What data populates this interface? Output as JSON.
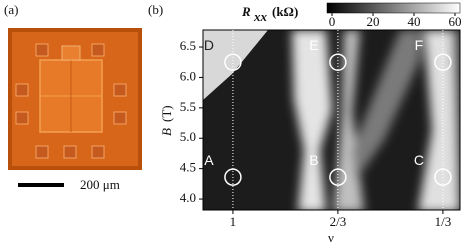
{
  "panel_a": {
    "label": "(a)",
    "scale_bar": "200 μm"
  },
  "panel_b": {
    "label": "(b)",
    "colorbar": {
      "title": "R",
      "title_sub": "xx",
      "unit": "(kΩ)",
      "lim": [
        0,
        60
      ],
      "ticks": [
        0,
        20,
        40,
        60
      ]
    },
    "y_axis": {
      "label": "B",
      "unit": "(T)",
      "lim": [
        3.82,
        6.78
      ],
      "ticks": [
        {
          "value": 4,
          "label": "4.0"
        },
        {
          "value": 4.5,
          "label": "4.5"
        },
        {
          "value": 5,
          "label": "5.0"
        },
        {
          "value": 5.5,
          "label": "5.5"
        },
        {
          "value": 6,
          "label": "6.0"
        },
        {
          "value": 6.5,
          "label": "6.5"
        }
      ]
    },
    "x_axis": {
      "label": "ν",
      "lim": [
        1.095,
        0.279
      ],
      "ticks": [
        1,
        {
          "value": 0.6667,
          "label": "2/3"
        },
        {
          "value": 0.3333,
          "label": "1/3"
        }
      ]
    },
    "markers": [
      {
        "label": "A",
        "nu": 1,
        "B": 4.36
      },
      {
        "label": "B",
        "nu": 0.6667,
        "B": 4.36
      },
      {
        "label": "C",
        "nu": 0.3333,
        "B": 4.36
      },
      {
        "label": "D",
        "nu": 1,
        "B": 6.25
      },
      {
        "label": "E",
        "nu": 0.6667,
        "B": 6.25
      },
      {
        "label": "F",
        "nu": 0.3333,
        "B": 6.25
      }
    ]
  }
}
